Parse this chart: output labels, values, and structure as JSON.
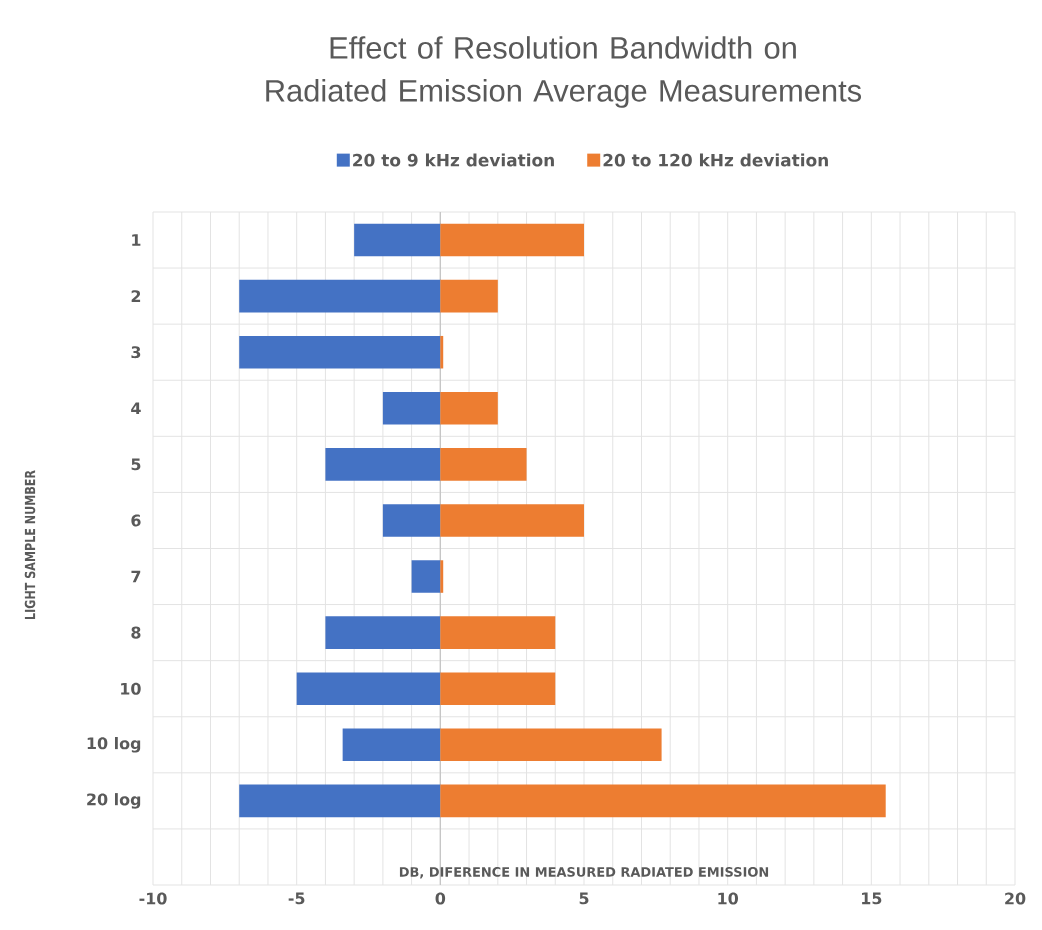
{
  "chart_data": {
    "type": "bar",
    "orientation": "horizontal",
    "title": "Effect of Resolution Bandwidth on Radiated Emission Average Measurements",
    "xlabel": "DB, DIFERENCE IN MEASURED RADIATED EMISSION",
    "ylabel": "LIGHT SAMPLE NUMBER",
    "categories": [
      "1",
      "2",
      "3",
      "4",
      "5",
      "6",
      "7",
      "8",
      "10",
      "10 log",
      "20 log",
      null
    ],
    "series": [
      {
        "name": "20 to 9 kHz deviation",
        "color": "#4472c4",
        "values": [
          -3,
          -7,
          -7,
          -2,
          -4,
          -2,
          -1,
          -4,
          -5,
          -3.4,
          -7,
          null
        ]
      },
      {
        "name": "20 to 120 kHz deviation",
        "color": "#ed7d31",
        "values": [
          5,
          2,
          0.1,
          2,
          3,
          5,
          0.1,
          4,
          4,
          7.7,
          15.5,
          null
        ]
      }
    ],
    "xlim": [
      -10,
      20
    ],
    "xticks": [
      -10,
      {
        "value": -9,
        "label": null
      },
      {
        "value": -8,
        "label": null
      },
      {
        "value": -7,
        "label": null
      },
      {
        "value": -6,
        "label": null
      },
      -5,
      {
        "value": -4,
        "label": null
      },
      {
        "value": -3,
        "label": null
      },
      {
        "value": -2,
        "label": null
      },
      {
        "value": -1,
        "label": null
      },
      0,
      {
        "value": 1,
        "label": null
      },
      {
        "value": 2,
        "label": null
      },
      {
        "value": 3,
        "label": null
      },
      {
        "value": 4,
        "label": null
      },
      5,
      {
        "value": 6,
        "label": null
      },
      {
        "value": 7,
        "label": null
      },
      {
        "value": 8,
        "label": null
      },
      {
        "value": 9,
        "label": null
      },
      10,
      {
        "value": 11,
        "label": null
      },
      {
        "value": 12,
        "label": null
      },
      {
        "value": 13,
        "label": null
      },
      {
        "value": 14,
        "label": null
      },
      15,
      {
        "value": 16,
        "label": null
      },
      {
        "value": 17,
        "label": null
      },
      {
        "value": 18,
        "label": null
      },
      {
        "value": 19,
        "label": null
      },
      20
    ],
    "stacked": true,
    "grid": true,
    "legend": "top"
  }
}
